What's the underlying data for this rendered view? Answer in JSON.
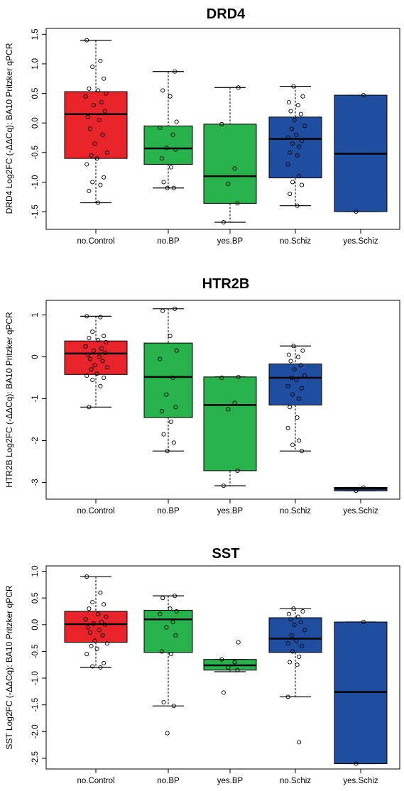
{
  "colors": {
    "control": "#e8242a",
    "bp": "#27b24b",
    "schiz": "#1f4ea1",
    "ink": "#000000"
  },
  "chart_data": [
    {
      "type": "box",
      "title": "DRD4",
      "ylabel": "DRD4 Log2FC (-ΔΔCq): BA10 Pritzker qPCR",
      "ylim": [
        -1.8,
        1.6
      ],
      "yticks": [
        -1.5,
        -1.0,
        -0.5,
        0.0,
        0.5,
        1.0,
        1.5
      ],
      "ytick_labels": [
        "-1.5",
        "-1.0",
        "-0.5",
        "0.0",
        "0.5",
        "1.0",
        "1.5"
      ],
      "categories": [
        "no.Control",
        "no.BP",
        "yes.BP",
        "no.Schiz",
        "yes.Schiz"
      ],
      "boxes": [
        {
          "group": "control",
          "min": -1.35,
          "q1": -0.6,
          "median": 0.15,
          "q3": 0.53,
          "max": 1.4,
          "points": [
            1.4,
            1.05,
            0.95,
            0.75,
            0.58,
            0.55,
            0.5,
            0.45,
            0.35,
            0.3,
            0.2,
            0.1,
            0.05,
            -0.1,
            -0.2,
            -0.35,
            -0.5,
            -0.55,
            -0.6,
            -0.7,
            -0.92,
            -1.0,
            -1.05,
            -1.15,
            -1.35
          ]
        },
        {
          "group": "bp",
          "min": -1.1,
          "q1": -0.7,
          "median": -0.43,
          "q3": -0.05,
          "max": 0.87,
          "points": [
            0.87,
            0.55,
            0.45,
            0.02,
            -0.08,
            -0.2,
            -0.42,
            -0.45,
            -0.6,
            -0.75,
            -1.0,
            -1.1,
            -1.1
          ]
        },
        {
          "group": "bp",
          "min": -1.68,
          "q1": -1.36,
          "median": -0.9,
          "q3": -0.02,
          "max": 0.6,
          "points": [
            0.6,
            -0.02,
            -0.77,
            -1.03,
            -1.36,
            -1.68
          ]
        },
        {
          "group": "schiz",
          "min": -1.4,
          "q1": -0.93,
          "median": -0.27,
          "q3": 0.1,
          "max": 0.62,
          "points": [
            0.62,
            0.45,
            0.35,
            0.3,
            0.2,
            0.15,
            0.05,
            -0.05,
            -0.1,
            -0.2,
            -0.25,
            -0.3,
            -0.35,
            -0.4,
            -0.5,
            -0.55,
            -0.7,
            -0.9,
            -1.0,
            -1.05,
            -1.2,
            -1.4
          ]
        },
        {
          "group": "schiz",
          "min": -1.5,
          "q1": -1.5,
          "median": -0.52,
          "q3": 0.47,
          "max": 0.47,
          "points": [
            0.47,
            -1.5
          ]
        }
      ]
    },
    {
      "type": "box",
      "title": "HTR2B",
      "ylabel": "HTR2B Log2FC (-ΔΔCq): BA10 Pritzker qPCR",
      "ylim": [
        -3.4,
        1.35
      ],
      "yticks": [
        -3,
        -2,
        -1,
        0,
        1
      ],
      "ytick_labels": [
        "-3",
        "-2",
        "-1",
        "0",
        "1"
      ],
      "categories": [
        "no.Control",
        "no.BP",
        "yes.BP",
        "no.Schiz",
        "yes.Schiz"
      ],
      "boxes": [
        {
          "group": "control",
          "min": -1.2,
          "q1": -0.42,
          "median": 0.08,
          "q3": 0.38,
          "max": 0.97,
          "points": [
            0.97,
            0.95,
            0.6,
            0.5,
            0.45,
            0.4,
            0.35,
            0.25,
            0.2,
            0.15,
            0.1,
            0.05,
            0.0,
            -0.05,
            -0.1,
            -0.2,
            -0.25,
            -0.3,
            -0.4,
            -0.45,
            -0.5,
            -0.55,
            -0.7,
            -1.2
          ]
        },
        {
          "group": "bp",
          "min": -2.25,
          "q1": -1.45,
          "median": -0.48,
          "q3": 0.33,
          "max": 1.15,
          "points": [
            1.15,
            1.1,
            0.5,
            0.15,
            -0.05,
            -0.5,
            -0.9,
            -1.2,
            -1.3,
            -1.55,
            -1.85,
            -2.05,
            -2.25
          ]
        },
        {
          "group": "bp",
          "min": -3.08,
          "q1": -2.72,
          "median": -1.15,
          "q3": -0.48,
          "max": -0.48,
          "points": [
            -0.48,
            -0.5,
            -1.1,
            -1.25,
            -2.72,
            -3.08
          ]
        },
        {
          "group": "schiz",
          "min": -2.25,
          "q1": -1.15,
          "median": -0.5,
          "q3": -0.17,
          "max": 0.26,
          "points": [
            0.26,
            0.15,
            0.05,
            0.0,
            -0.1,
            -0.2,
            -0.3,
            -0.45,
            -0.5,
            -0.55,
            -0.7,
            -0.75,
            -0.9,
            -1.0,
            -1.2,
            -1.45,
            -1.7,
            -2.0,
            -2.1,
            -2.25
          ]
        },
        {
          "group": "schiz",
          "min": -3.2,
          "q1": -3.2,
          "median": -3.15,
          "q3": -3.12,
          "max": -3.12,
          "points": [
            -3.12,
            -3.2
          ]
        }
      ]
    },
    {
      "type": "box",
      "title": "SST",
      "ylabel": "SST Log2FC (-ΔΔCq): BA10 Pritzker qPCR",
      "ylim": [
        -2.7,
        1.1
      ],
      "yticks": [
        -2.5,
        -2.0,
        -1.5,
        -1.0,
        -0.5,
        0.0,
        0.5,
        1.0
      ],
      "ytick_labels": [
        "-2.5",
        "-2.0",
        "-1.5",
        "-1.0",
        "-0.5",
        "0.0",
        "0.5",
        "1.0"
      ],
      "categories": [
        "no.Control",
        "no.BP",
        "yes.BP",
        "no.Schiz",
        "yes.Schiz"
      ],
      "boxes": [
        {
          "group": "control",
          "min": -0.8,
          "q1": -0.33,
          "median": 0.01,
          "q3": 0.25,
          "max": 0.9,
          "points": [
            0.9,
            0.6,
            0.42,
            0.38,
            0.3,
            0.2,
            0.15,
            0.1,
            0.05,
            0.02,
            0.0,
            -0.05,
            -0.1,
            -0.15,
            -0.2,
            -0.3,
            -0.35,
            -0.4,
            -0.45,
            -0.55,
            -0.72,
            -0.78,
            -0.8
          ]
        },
        {
          "group": "bp",
          "min": -1.52,
          "q1": -0.52,
          "median": 0.1,
          "q3": 0.27,
          "max": 0.54,
          "points": [
            0.54,
            0.5,
            0.3,
            0.25,
            0.2,
            0.05,
            -0.05,
            -0.2,
            -0.5,
            -0.55,
            -1.45,
            -1.52,
            -2.03
          ]
        },
        {
          "group": "bp",
          "min": -0.88,
          "q1": -0.85,
          "median": -0.76,
          "q3": -0.65,
          "max": -0.65,
          "points": [
            -0.33,
            -0.65,
            -0.7,
            -0.8,
            -0.85,
            -1.27
          ]
        },
        {
          "group": "schiz",
          "min": -1.35,
          "q1": -0.52,
          "median": -0.26,
          "q3": 0.13,
          "max": 0.3,
          "points": [
            0.3,
            0.25,
            0.2,
            0.15,
            0.1,
            0.05,
            0.0,
            -0.1,
            -0.2,
            -0.3,
            -0.35,
            -0.4,
            -0.5,
            -0.6,
            -0.7,
            -0.75,
            -1.35,
            -2.2
          ]
        },
        {
          "group": "schiz",
          "min": -2.6,
          "q1": -2.6,
          "median": -1.26,
          "q3": 0.05,
          "max": 0.05,
          "points": [
            0.05,
            -2.6
          ]
        }
      ]
    }
  ]
}
